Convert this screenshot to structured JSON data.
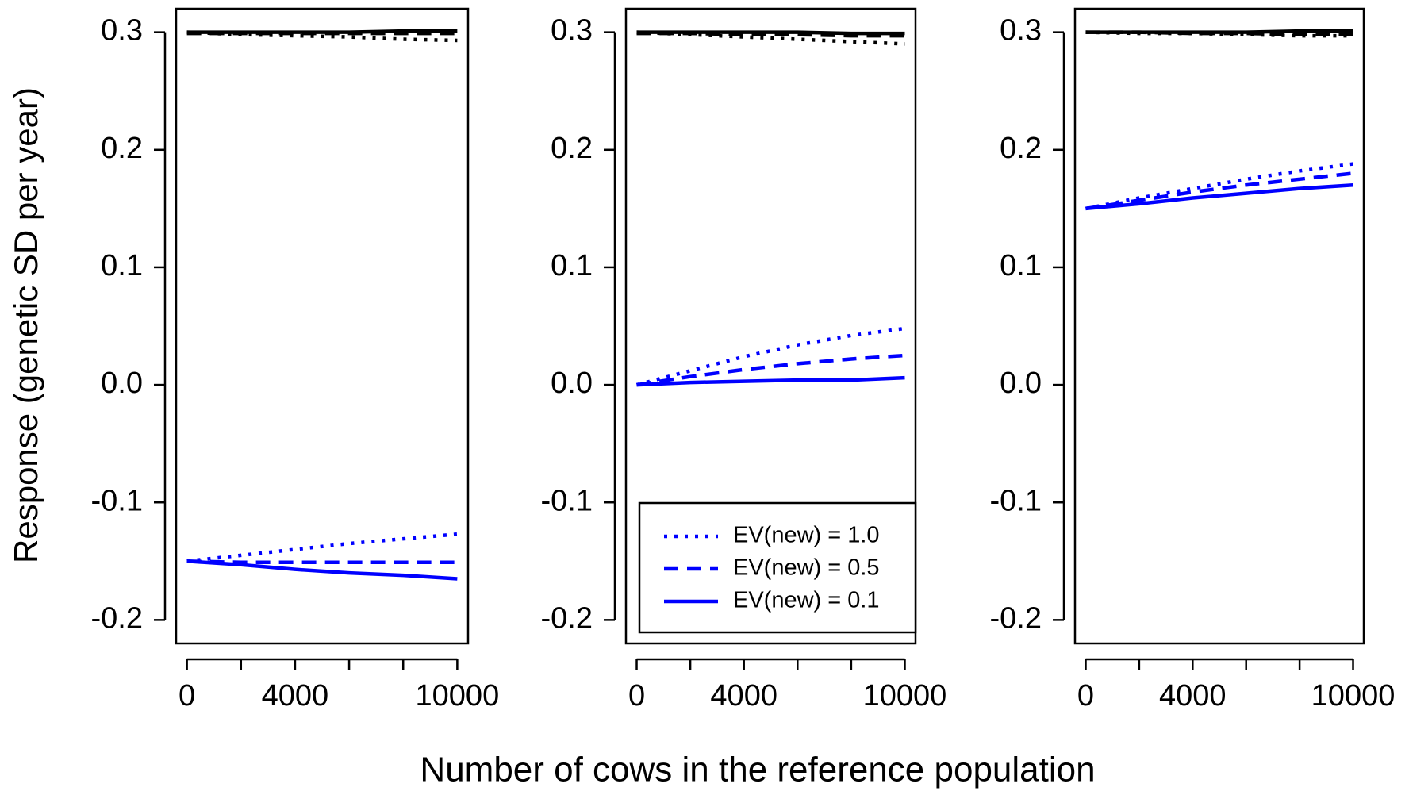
{
  "chart_data": [
    {
      "type": "line",
      "ylabel": "Response (genetic SD per year)",
      "x": [
        0,
        2000,
        4000,
        6000,
        8000,
        10000
      ],
      "xlim": [
        -400,
        10400
      ],
      "ylim": [
        -0.22,
        0.32
      ],
      "xticks": [
        0,
        4000,
        10000
      ],
      "xticks_unlabeled": [
        2000,
        6000,
        8000
      ],
      "yticks": [
        -0.2,
        -0.1,
        {
          "value": 0,
          "label": "0.0"
        },
        0.1,
        0.2,
        0.3
      ],
      "series": [
        {
          "color": "#000000",
          "linestyle": "solid",
          "values": [
            0.3,
            0.3,
            0.3,
            0.3,
            0.301,
            0.301
          ]
        },
        {
          "color": "#000000",
          "linestyle": "dashed",
          "values": [
            0.299,
            0.299,
            0.299,
            0.299,
            0.299,
            0.299
          ]
        },
        {
          "color": "#000000",
          "linestyle": "dotted",
          "values": [
            0.3,
            0.298,
            0.297,
            0.296,
            0.294,
            0.293
          ]
        },
        {
          "color": "#0000ff",
          "linestyle": "dotted",
          "values": [
            -0.15,
            -0.145,
            -0.14,
            -0.135,
            -0.131,
            -0.127
          ]
        },
        {
          "color": "#0000ff",
          "linestyle": "dashed",
          "values": [
            -0.15,
            -0.151,
            -0.151,
            -0.151,
            -0.151,
            -0.151
          ]
        },
        {
          "color": "#0000ff",
          "linestyle": "solid",
          "values": [
            -0.15,
            -0.153,
            -0.157,
            -0.16,
            -0.162,
            -0.165
          ]
        }
      ]
    },
    {
      "type": "line",
      "xlabel": "Number of cows in the reference population",
      "x": [
        0,
        2000,
        4000,
        6000,
        8000,
        10000
      ],
      "xlim": [
        -400,
        10400
      ],
      "ylim": [
        -0.22,
        0.32
      ],
      "xticks": [
        0,
        4000,
        10000
      ],
      "xticks_unlabeled": [
        2000,
        6000,
        8000
      ],
      "yticks": [
        -0.2,
        -0.1,
        {
          "value": 0,
          "label": "0.0"
        },
        0.1,
        0.2,
        0.3
      ],
      "legend": "bottom-right",
      "series": [
        {
          "color": "#000000",
          "linestyle": "solid",
          "values": [
            0.3,
            0.3,
            0.3,
            0.3,
            0.299,
            0.299
          ]
        },
        {
          "color": "#000000",
          "linestyle": "dashed",
          "values": [
            0.299,
            0.299,
            0.298,
            0.298,
            0.297,
            0.297
          ]
        },
        {
          "color": "#000000",
          "linestyle": "dotted",
          "values": [
            0.3,
            0.298,
            0.296,
            0.294,
            0.292,
            0.29
          ]
        },
        {
          "name": "EV(new) = 1.0",
          "color": "#0000ff",
          "linestyle": "dotted",
          "values": [
            0,
            0.012,
            0.024,
            0.034,
            0.042,
            0.048
          ]
        },
        {
          "name": "EV(new) = 0.5",
          "color": "#0000ff",
          "linestyle": "dashed",
          "values": [
            0,
            0.007,
            0.013,
            0.018,
            0.022,
            0.025
          ]
        },
        {
          "name": "EV(new) = 0.1",
          "color": "#0000ff",
          "linestyle": "solid",
          "values": [
            0,
            0.002,
            0.003,
            0.004,
            0.004,
            0.006
          ]
        }
      ]
    },
    {
      "type": "line",
      "x": [
        0,
        2000,
        4000,
        6000,
        8000,
        10000
      ],
      "xlim": [
        -400,
        10400
      ],
      "ylim": [
        -0.22,
        0.32
      ],
      "xticks": [
        0,
        4000,
        10000
      ],
      "xticks_unlabeled": [
        2000,
        6000,
        8000
      ],
      "yticks": [
        -0.2,
        -0.1,
        {
          "value": 0,
          "label": "0.0"
        },
        0.1,
        0.2,
        0.3
      ],
      "series": [
        {
          "color": "#000000",
          "linestyle": "solid",
          "values": [
            0.3,
            0.3,
            0.3,
            0.3,
            0.301,
            0.301
          ]
        },
        {
          "color": "#000000",
          "linestyle": "dashed",
          "values": [
            0.3,
            0.3,
            0.299,
            0.299,
            0.298,
            0.298
          ]
        },
        {
          "color": "#000000",
          "linestyle": "dotted",
          "values": [
            0.3,
            0.299,
            0.299,
            0.298,
            0.297,
            0.297
          ]
        },
        {
          "color": "#0000ff",
          "linestyle": "dotted",
          "values": [
            0.15,
            0.159,
            0.167,
            0.175,
            0.182,
            0.188
          ]
        },
        {
          "color": "#0000ff",
          "linestyle": "dashed",
          "values": [
            0.15,
            0.157,
            0.164,
            0.17,
            0.175,
            0.18
          ]
        },
        {
          "color": "#0000ff",
          "linestyle": "solid",
          "values": [
            0.15,
            0.154,
            0.159,
            0.163,
            0.167,
            0.17
          ]
        }
      ]
    }
  ]
}
